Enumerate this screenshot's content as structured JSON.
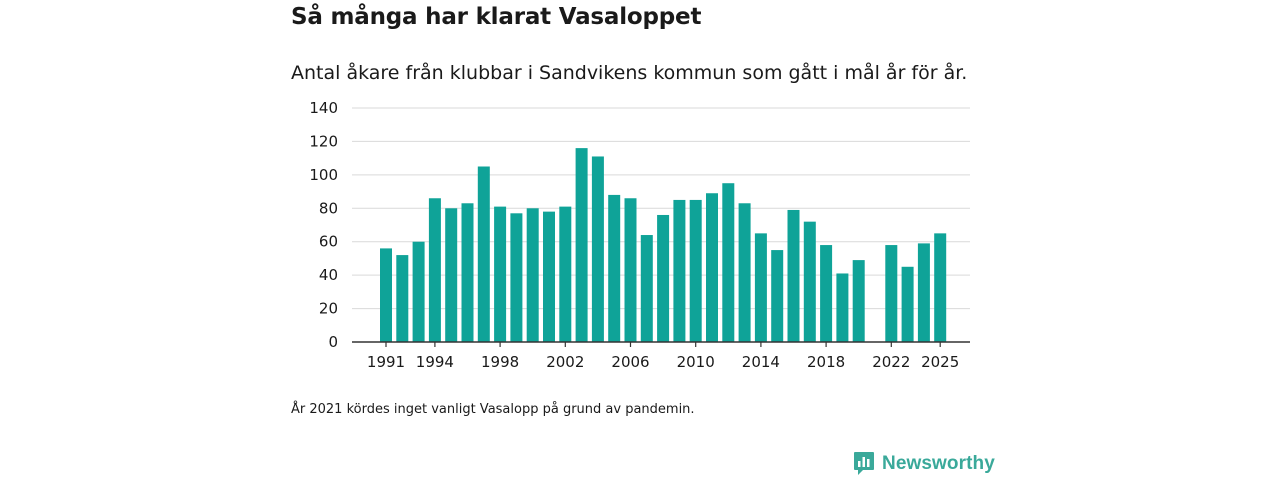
{
  "header": {
    "title": "Så många har klarat Vasaloppet",
    "subtitle": "Antal åkare från klubbar i Sandvikens kommun som gått i mål år för år."
  },
  "footer": {
    "note": "År 2021 kördes inget vanligt Vasalopp på grund av pandemin.",
    "brand": "Newsworthy"
  },
  "colors": {
    "bar": "#0fa398",
    "grid": "#d9d9d9",
    "axis": "#333333",
    "brand": "#3aa99a"
  },
  "chart_data": {
    "type": "bar",
    "title": "Så många har klarat Vasaloppet",
    "subtitle": "Antal åkare från klubbar i Sandvikens kommun som gått i mål år för år.",
    "xlabel": "",
    "ylabel": "",
    "categories": [
      1991,
      1992,
      1993,
      1994,
      1995,
      1996,
      1997,
      1998,
      1999,
      2000,
      2001,
      2002,
      2003,
      2004,
      2005,
      2006,
      2007,
      2008,
      2009,
      2010,
      2011,
      2012,
      2013,
      2014,
      2015,
      2016,
      2017,
      2018,
      2019,
      2020,
      2021,
      2022,
      2023,
      2024,
      2025
    ],
    "values": [
      56,
      52,
      60,
      86,
      80,
      83,
      105,
      81,
      77,
      80,
      78,
      81,
      116,
      111,
      88,
      86,
      64,
      76,
      85,
      85,
      89,
      95,
      83,
      65,
      55,
      79,
      72,
      58,
      41,
      49,
      null,
      58,
      45,
      59,
      65
    ],
    "x_tick_labels": [
      "1991",
      "1994",
      "1998",
      "2002",
      "2006",
      "2010",
      "2014",
      "2018",
      "2022",
      "2025"
    ],
    "y_ticks": [
      0,
      20,
      40,
      60,
      80,
      100,
      120,
      140
    ],
    "ylim": [
      0,
      140
    ],
    "grid": true,
    "legend": "none"
  }
}
